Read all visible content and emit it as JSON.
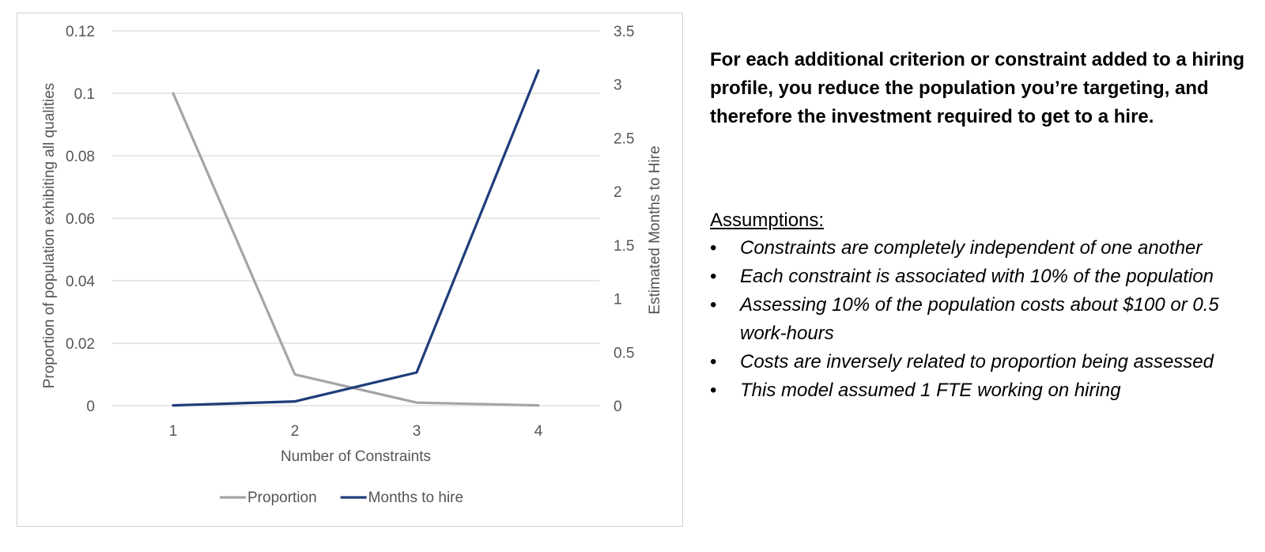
{
  "chart_data": {
    "type": "line",
    "x": [
      1,
      2,
      3,
      4
    ],
    "categories": [
      "1",
      "2",
      "3",
      "4"
    ],
    "xlabel": "Number of Constraints",
    "ylabel": "Proportion of population exhibiting all qualities",
    "y2label": "Estimated Months to Hire",
    "ylim": [
      0,
      0.12
    ],
    "y2lim": [
      0,
      3.5
    ],
    "yticks": [
      "0",
      "0.02",
      "0.04",
      "0.06",
      "0.08",
      "0.1",
      "0.12"
    ],
    "y2ticks": [
      "0",
      "0.5",
      "1",
      "1.5",
      "2",
      "2.5",
      "3",
      "3.5"
    ],
    "grid": true,
    "legend_position": "bottom",
    "series": [
      {
        "name": "Proportion",
        "axis": "left",
        "color": "#a5a5a5",
        "values": [
          0.1,
          0.01,
          0.001,
          0.0001
        ]
      },
      {
        "name": "Months to hire",
        "axis": "right",
        "color": "#1f3d7a",
        "values": [
          0.003,
          0.04,
          0.31,
          3.13
        ]
      }
    ]
  },
  "panel": {
    "headline": "For each additional criterion or constraint added to a hiring profile, you reduce the population you’re targeting, and therefore the investment required to get to a hire.",
    "assumptions_title": "Assumptions:",
    "bullet_glyph": "•",
    "assumptions": [
      "Constraints are completely independent of one another",
      "Each constraint is associated with 10% of the population",
      "Assessing 10% of the population costs about $100 or 0.5 work-hours",
      "Costs are inversely related to proportion being assessed",
      "This model assumed 1 FTE working on hiring"
    ]
  }
}
